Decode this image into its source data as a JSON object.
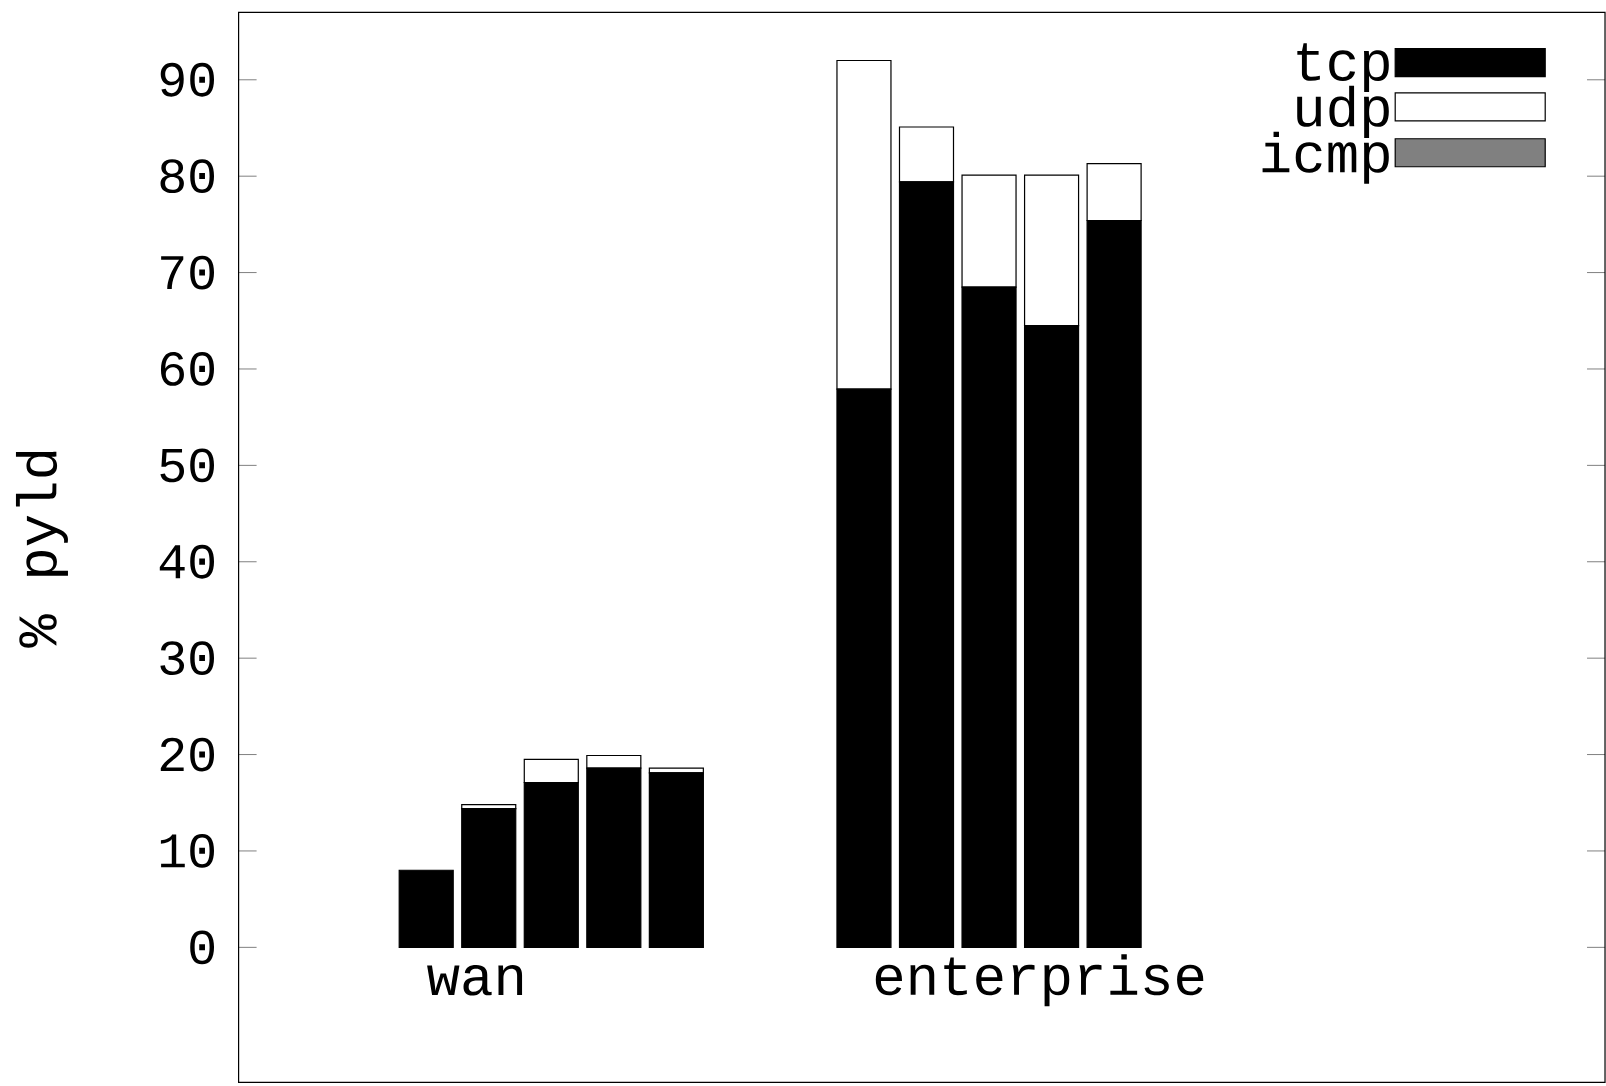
{
  "chart_data": {
    "type": "bar",
    "stacked": true,
    "ylabel": "% pyld",
    "categories": [
      null,
      "wan",
      null,
      null,
      null,
      null,
      null,
      null,
      null,
      null,
      "enterprise",
      null
    ],
    "series": [
      {
        "name": "tcp",
        "color": "#000000",
        "values": [
          8.0,
          14.4,
          17.1,
          18.6,
          18.1,
          null,
          null,
          57.9,
          79.4,
          68.5,
          64.5,
          75.4
        ]
      },
      {
        "name": "udp",
        "color": "#ffffff",
        "values": [
          0,
          0.4,
          2.4,
          1.3,
          0.5,
          null,
          null,
          34.1,
          5.7,
          11.6,
          15.6,
          5.9
        ]
      },
      {
        "name": "icmp",
        "color": "#808080",
        "values": [
          0,
          0,
          0,
          0,
          0,
          null,
          null,
          0,
          0,
          0,
          0,
          0
        ]
      }
    ],
    "ylim": [
      -14,
      97
    ],
    "yticks": [
      0,
      10,
      20,
      30,
      40,
      50,
      60,
      70,
      80,
      90
    ],
    "legend": "top right"
  }
}
